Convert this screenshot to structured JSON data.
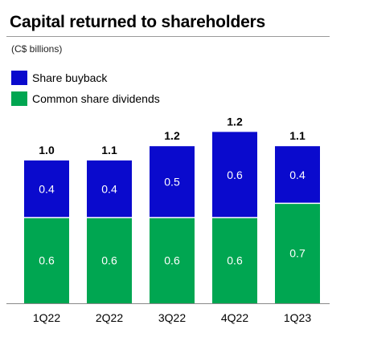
{
  "chart_data": {
    "type": "bar",
    "stacked": true,
    "title": "Capital returned to shareholders",
    "subtitle": "(C$ billions)",
    "categories": [
      "1Q22",
      "2Q22",
      "3Q22",
      "4Q22",
      "1Q23"
    ],
    "series": [
      {
        "name": "Common share dividends",
        "values": [
          0.6,
          0.6,
          0.6,
          0.6,
          0.7
        ],
        "color": "#00A651"
      },
      {
        "name": "Share buyback",
        "values": [
          0.4,
          0.4,
          0.5,
          0.6,
          0.4
        ],
        "color": "#0A0ACD"
      }
    ],
    "segment_labels": [
      [
        "0.6",
        "0.6",
        "0.6",
        "0.6",
        "0.7"
      ],
      [
        "0.4",
        "0.4",
        "0.5",
        "0.6",
        "0.4"
      ]
    ],
    "totals": [
      "1.0",
      "1.1",
      "1.2",
      "1.2",
      "1.1"
    ],
    "legend": [
      {
        "label": "Share buyback",
        "color": "#0A0ACD"
      },
      {
        "label": "Common share dividends",
        "color": "#00A651"
      }
    ],
    "legend_position": "top-left",
    "ylim": [
      0,
      1.3
    ],
    "grid": false
  }
}
